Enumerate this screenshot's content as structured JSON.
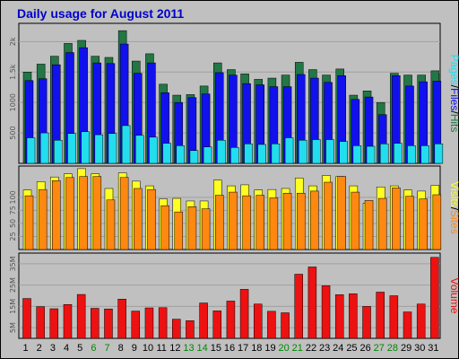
{
  "title": "Daily usage for August 2011",
  "colors": {
    "background": "#C0C0C0",
    "hits": "#227744",
    "files": "#1111EE",
    "pages": "#22DDEE",
    "visits": "#FFFF22",
    "sites": "#FF8811",
    "volume": "#EE1111",
    "title": "#0000CC",
    "weekend_day": "#008800",
    "weekday": "#000000"
  },
  "chart_data": [
    {
      "type": "bar",
      "panel": "hits_files_pages",
      "side_label": [
        "Pages",
        "/",
        "Files",
        "/",
        "Hits"
      ],
      "categories": [
        "1",
        "2",
        "3",
        "4",
        "5",
        "6",
        "7",
        "8",
        "9",
        "10",
        "11",
        "12",
        "13",
        "14",
        "15",
        "16",
        "17",
        "18",
        "19",
        "20",
        "21",
        "22",
        "23",
        "24",
        "25",
        "26",
        "27",
        "28",
        "29",
        "30",
        "31"
      ],
      "weekend_days": [
        6,
        7,
        13,
        14,
        20,
        21,
        27,
        28
      ],
      "ylim": [
        0,
        2300
      ],
      "yticks": [
        {
          "v": 500,
          "label": "500"
        },
        {
          "v": 1000,
          "label": "1000"
        },
        {
          "v": 1500,
          "label": "1.5k"
        },
        {
          "v": 2000,
          "label": "2k"
        }
      ],
      "series": [
        {
          "name": "Hits",
          "color": "#227744",
          "values": [
            1500,
            1630,
            1760,
            1970,
            2020,
            1760,
            1740,
            2180,
            1680,
            1800,
            1300,
            1120,
            1130,
            1270,
            1650,
            1540,
            1470,
            1380,
            1400,
            1450,
            1660,
            1540,
            1450,
            1550,
            1120,
            1190,
            1000,
            1480,
            1450,
            1450,
            1520
          ]
        },
        {
          "name": "Files",
          "color": "#1111EE",
          "values": [
            1360,
            1390,
            1620,
            1820,
            1900,
            1650,
            1640,
            1960,
            1480,
            1650,
            1160,
            1000,
            1080,
            1140,
            1490,
            1450,
            1310,
            1290,
            1260,
            1260,
            1460,
            1400,
            1330,
            1440,
            1050,
            1090,
            800,
            1440,
            1270,
            1340,
            1350
          ]
        },
        {
          "name": "Pages",
          "color": "#22DDEE",
          "values": [
            420,
            500,
            380,
            490,
            520,
            470,
            490,
            620,
            460,
            430,
            330,
            290,
            210,
            270,
            380,
            260,
            320,
            310,
            320,
            420,
            380,
            390,
            390,
            360,
            290,
            280,
            320,
            330,
            290,
            290,
            320
          ]
        }
      ]
    },
    {
      "type": "bar",
      "panel": "visits_sites",
      "side_label": [
        "Visits",
        "/",
        "Sites"
      ],
      "ylim": [
        0,
        160
      ],
      "yticks": [
        {
          "v": 25,
          "label": "25"
        },
        {
          "v": 50,
          "label": "50"
        },
        {
          "v": 75,
          "label": "75"
        },
        {
          "v": 100,
          "label": "100"
        }
      ],
      "series": [
        {
          "name": "Visits",
          "color": "#FFFF22",
          "values": [
            114,
            130,
            139,
            145,
            155,
            145,
            117,
            147,
            131,
            122,
            97,
            98,
            93,
            93,
            133,
            122,
            124,
            114,
            115,
            117,
            137,
            122,
            142,
            140,
            122,
            89,
            120,
            122,
            114,
            112,
            123
          ]
        },
        {
          "name": "Sites",
          "color": "#FF8811",
          "values": [
            103,
            115,
            132,
            138,
            140,
            140,
            95,
            138,
            117,
            115,
            84,
            72,
            82,
            78,
            104,
            110,
            103,
            104,
            99,
            108,
            108,
            112,
            129,
            140,
            110,
            94,
            98,
            118,
            102,
            97,
            105
          ]
        }
      ]
    },
    {
      "type": "bar",
      "panel": "volume",
      "side_label": [
        "Volume"
      ],
      "ylim": [
        0,
        4000
      ],
      "yticks": [
        {
          "v": 500,
          "label": "5M"
        },
        {
          "v": 1500,
          "label": "15M"
        },
        {
          "v": 2500,
          "label": "25M"
        },
        {
          "v": 3500,
          "label": "35M"
        }
      ],
      "series": [
        {
          "name": "Volume",
          "color": "#EE1111",
          "values": [
            1870,
            1490,
            1390,
            1590,
            2060,
            1410,
            1380,
            1840,
            1280,
            1430,
            1440,
            900,
            830,
            1660,
            1290,
            1750,
            2300,
            1610,
            1270,
            1200,
            3010,
            3350,
            2470,
            2050,
            2090,
            1500,
            2170,
            2000,
            1240,
            1610,
            3800
          ]
        }
      ]
    }
  ]
}
